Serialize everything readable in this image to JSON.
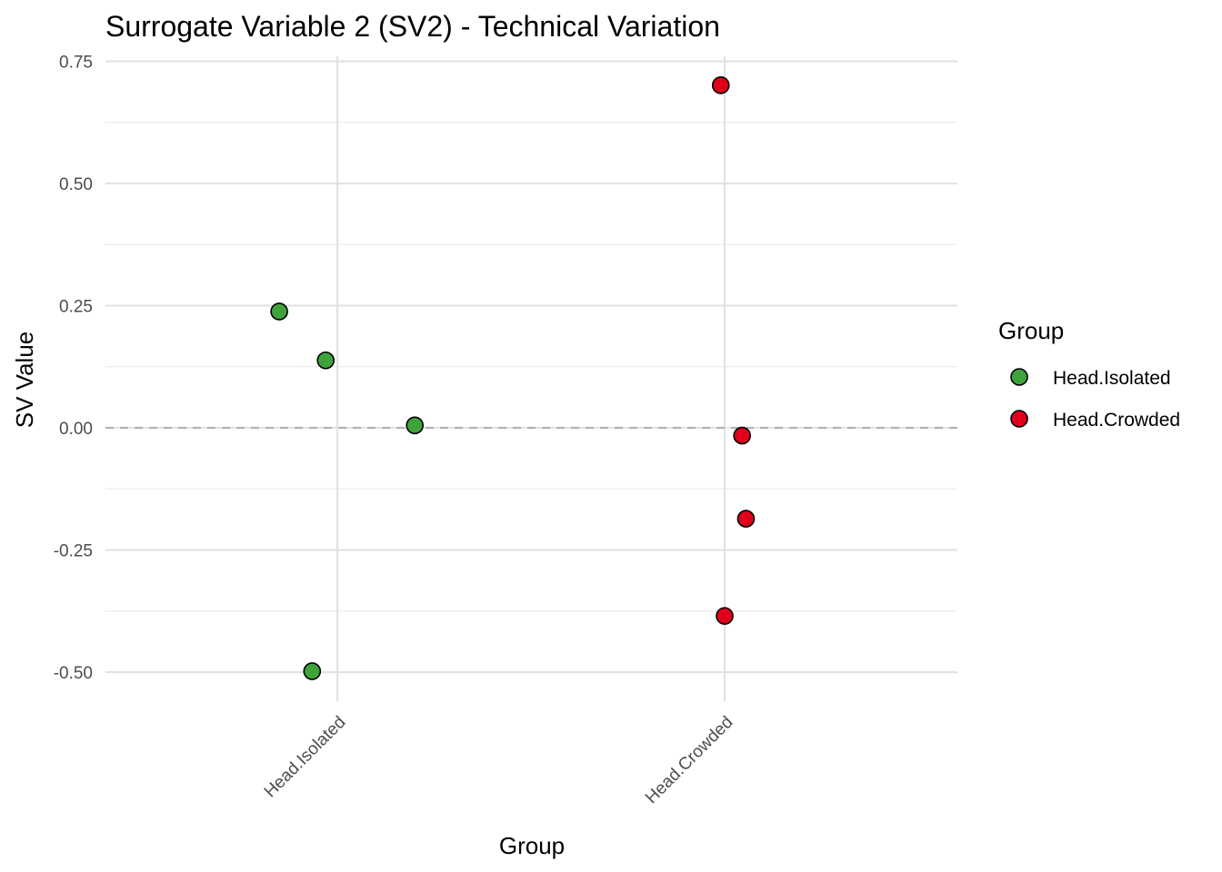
{
  "chart_data": {
    "type": "scatter",
    "title": "Surrogate Variable 2 (SV2) - Technical Variation",
    "xlabel": "Group",
    "ylabel": "SV Value",
    "categories": [
      "Head.Isolated",
      "Head.Crowded"
    ],
    "ylim": [
      -0.56,
      0.755
    ],
    "yticks": [
      "0.75",
      "0.50",
      "0.25",
      "0.00",
      "-0.25",
      "-0.50"
    ],
    "ytick_values": [
      0.75,
      0.5,
      0.25,
      0.0,
      -0.25,
      -0.5
    ],
    "reference_line": {
      "y": 0.0,
      "style": "dashed"
    },
    "grid": true,
    "legend": {
      "title": "Group",
      "position": "right",
      "entries": [
        "Head.Isolated",
        "Head.Crowded"
      ]
    },
    "colors": {
      "Head.Isolated": "#3fa33b",
      "Head.Crowded": "#e0001b"
    },
    "series": [
      {
        "name": "Head.Isolated",
        "points": [
          {
            "jitter": -0.15,
            "y": 0.238
          },
          {
            "jitter": -0.03,
            "y": 0.138
          },
          {
            "jitter": 0.2,
            "y": 0.005
          },
          {
            "jitter": -0.065,
            "y": -0.498
          }
        ]
      },
      {
        "name": "Head.Crowded",
        "points": [
          {
            "jitter": -0.01,
            "y": 0.701
          },
          {
            "jitter": 0.045,
            "y": -0.016
          },
          {
            "jitter": 0.055,
            "y": -0.186
          },
          {
            "jitter": 0.0,
            "y": -0.385
          }
        ]
      }
    ]
  }
}
